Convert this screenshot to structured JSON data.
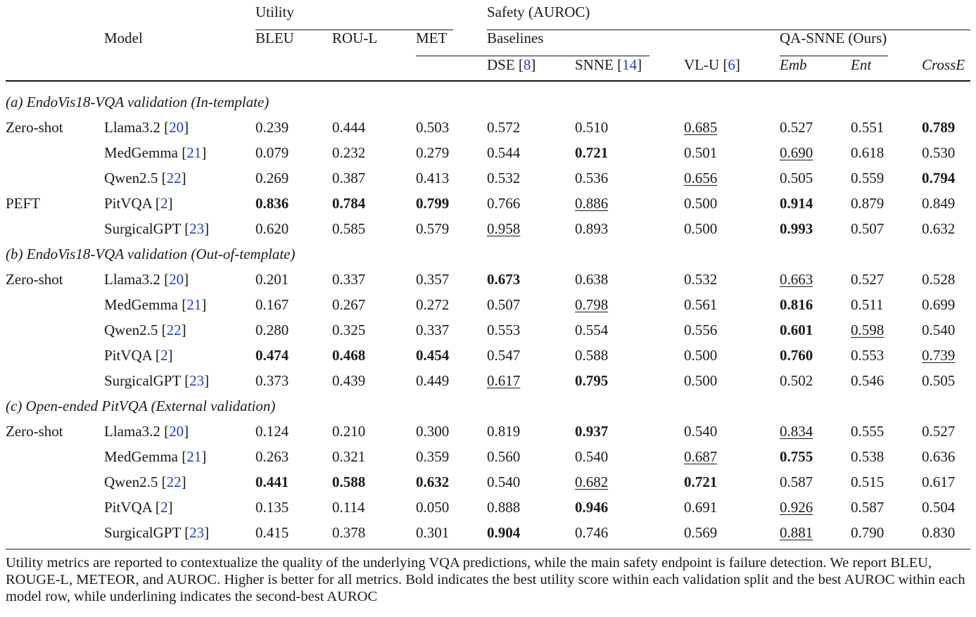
{
  "header": {
    "model": "Model",
    "utility": "Utility",
    "safety": "Safety (AUROC)",
    "baselines": "Baselines",
    "qa_snne": "QA-SNNE (Ours)",
    "bleu": "BLEU",
    "rou_l": "ROU-L",
    "met": "MET",
    "dse": "DSE [",
    "dse_ref": "8",
    "snne": "SNNE [",
    "snne_ref": "14",
    "vlu": "VL-U [",
    "vlu_ref": "6",
    "close": "]",
    "emb": "Emb",
    "ent": "Ent",
    "crosse": "CrossE"
  },
  "sections": [
    {
      "title": "(a) EndoVis18-VQA validation (In-template)",
      "rows": [
        {
          "group": "Zero-shot",
          "model": "Llama3.2",
          "ref": "20",
          "cells": [
            {
              "v": "0.239",
              "s": ""
            },
            {
              "v": "0.444",
              "s": ""
            },
            {
              "v": "0.503",
              "s": ""
            },
            {
              "v": "0.572",
              "s": ""
            },
            {
              "v": "0.510",
              "s": ""
            },
            {
              "v": "0.685",
              "s": "u"
            },
            {
              "v": "0.527",
              "s": ""
            },
            {
              "v": "0.551",
              "s": ""
            },
            {
              "v": "0.789",
              "s": "b"
            }
          ]
        },
        {
          "group": "",
          "model": "MedGemma",
          "ref": "21",
          "cells": [
            {
              "v": "0.079",
              "s": ""
            },
            {
              "v": "0.232",
              "s": ""
            },
            {
              "v": "0.279",
              "s": ""
            },
            {
              "v": "0.544",
              "s": ""
            },
            {
              "v": "0.721",
              "s": "b"
            },
            {
              "v": "0.501",
              "s": ""
            },
            {
              "v": "0.690",
              "s": "u"
            },
            {
              "v": "0.618",
              "s": ""
            },
            {
              "v": "0.530",
              "s": ""
            }
          ]
        },
        {
          "group": "",
          "model": "Qwen2.5",
          "ref": "22",
          "cells": [
            {
              "v": "0.269",
              "s": ""
            },
            {
              "v": "0.387",
              "s": ""
            },
            {
              "v": "0.413",
              "s": ""
            },
            {
              "v": "0.532",
              "s": ""
            },
            {
              "v": "0.536",
              "s": ""
            },
            {
              "v": "0.656",
              "s": "u"
            },
            {
              "v": "0.505",
              "s": ""
            },
            {
              "v": "0.559",
              "s": ""
            },
            {
              "v": "0.794",
              "s": "b"
            }
          ]
        },
        {
          "group": "PEFT",
          "model": "PitVQA",
          "ref": "2",
          "cells": [
            {
              "v": "0.836",
              "s": "b"
            },
            {
              "v": "0.784",
              "s": "b"
            },
            {
              "v": "0.799",
              "s": "b"
            },
            {
              "v": "0.766",
              "s": ""
            },
            {
              "v": "0.886",
              "s": "u"
            },
            {
              "v": "0.500",
              "s": ""
            },
            {
              "v": "0.914",
              "s": "b"
            },
            {
              "v": "0.879",
              "s": ""
            },
            {
              "v": "0.849",
              "s": ""
            }
          ]
        },
        {
          "group": "",
          "model": "SurgicalGPT",
          "ref": "23",
          "cells": [
            {
              "v": "0.620",
              "s": ""
            },
            {
              "v": "0.585",
              "s": ""
            },
            {
              "v": "0.579",
              "s": ""
            },
            {
              "v": "0.958",
              "s": "u"
            },
            {
              "v": "0.893",
              "s": ""
            },
            {
              "v": "0.500",
              "s": ""
            },
            {
              "v": "0.993",
              "s": "b"
            },
            {
              "v": "0.507",
              "s": ""
            },
            {
              "v": "0.632",
              "s": ""
            }
          ]
        }
      ]
    },
    {
      "title": "(b) EndoVis18-VQA validation (Out-of-template)",
      "rows": [
        {
          "group": "Zero-shot",
          "model": "Llama3.2",
          "ref": "20",
          "cells": [
            {
              "v": "0.201",
              "s": ""
            },
            {
              "v": "0.337",
              "s": ""
            },
            {
              "v": "0.357",
              "s": ""
            },
            {
              "v": "0.673",
              "s": "b"
            },
            {
              "v": "0.638",
              "s": ""
            },
            {
              "v": "0.532",
              "s": ""
            },
            {
              "v": "0.663",
              "s": "u"
            },
            {
              "v": "0.527",
              "s": ""
            },
            {
              "v": "0.528",
              "s": ""
            }
          ]
        },
        {
          "group": "",
          "model": "MedGemma",
          "ref": "21",
          "cells": [
            {
              "v": "0.167",
              "s": ""
            },
            {
              "v": "0.267",
              "s": ""
            },
            {
              "v": "0.272",
              "s": ""
            },
            {
              "v": "0.507",
              "s": ""
            },
            {
              "v": "0.798",
              "s": "u"
            },
            {
              "v": "0.561",
              "s": ""
            },
            {
              "v": "0.816",
              "s": "b"
            },
            {
              "v": "0.511",
              "s": ""
            },
            {
              "v": "0.699",
              "s": ""
            }
          ]
        },
        {
          "group": "",
          "model": "Qwen2.5",
          "ref": "22",
          "cells": [
            {
              "v": "0.280",
              "s": ""
            },
            {
              "v": "0.325",
              "s": ""
            },
            {
              "v": "0.337",
              "s": ""
            },
            {
              "v": "0.553",
              "s": ""
            },
            {
              "v": "0.554",
              "s": ""
            },
            {
              "v": "0.556",
              "s": ""
            },
            {
              "v": "0.601",
              "s": "b"
            },
            {
              "v": "0.598",
              "s": "u"
            },
            {
              "v": "0.540",
              "s": ""
            }
          ]
        },
        {
          "group": "",
          "model": "PitVQA",
          "ref": "2",
          "cells": [
            {
              "v": "0.474",
              "s": "b"
            },
            {
              "v": "0.468",
              "s": "b"
            },
            {
              "v": "0.454",
              "s": "b"
            },
            {
              "v": "0.547",
              "s": ""
            },
            {
              "v": "0.588",
              "s": ""
            },
            {
              "v": "0.500",
              "s": ""
            },
            {
              "v": "0.760",
              "s": "b"
            },
            {
              "v": "0.553",
              "s": ""
            },
            {
              "v": "0.739",
              "s": "u"
            }
          ]
        },
        {
          "group": "",
          "model": "SurgicalGPT",
          "ref": "23",
          "cells": [
            {
              "v": "0.373",
              "s": ""
            },
            {
              "v": "0.439",
              "s": ""
            },
            {
              "v": "0.449",
              "s": ""
            },
            {
              "v": "0.617",
              "s": "u"
            },
            {
              "v": "0.795",
              "s": "b"
            },
            {
              "v": "0.500",
              "s": ""
            },
            {
              "v": "0.502",
              "s": ""
            },
            {
              "v": "0.546",
              "s": ""
            },
            {
              "v": "0.505",
              "s": ""
            }
          ]
        }
      ]
    },
    {
      "title": "(c) Open-ended PitVQA (External validation)",
      "rows": [
        {
          "group": "Zero-shot",
          "model": "Llama3.2",
          "ref": "20",
          "cells": [
            {
              "v": "0.124",
              "s": ""
            },
            {
              "v": "0.210",
              "s": ""
            },
            {
              "v": "0.300",
              "s": ""
            },
            {
              "v": "0.819",
              "s": ""
            },
            {
              "v": "0.937",
              "s": "b"
            },
            {
              "v": "0.540",
              "s": ""
            },
            {
              "v": "0.834",
              "s": "u"
            },
            {
              "v": "0.555",
              "s": ""
            },
            {
              "v": "0.527",
              "s": ""
            }
          ]
        },
        {
          "group": "",
          "model": "MedGemma",
          "ref": "21",
          "cells": [
            {
              "v": "0.263",
              "s": ""
            },
            {
              "v": "0.321",
              "s": ""
            },
            {
              "v": "0.359",
              "s": ""
            },
            {
              "v": "0.560",
              "s": ""
            },
            {
              "v": "0.540",
              "s": ""
            },
            {
              "v": "0.687",
              "s": "u"
            },
            {
              "v": "0.755",
              "s": "b"
            },
            {
              "v": "0.538",
              "s": ""
            },
            {
              "v": "0.636",
              "s": ""
            }
          ]
        },
        {
          "group": "",
          "model": "Qwen2.5",
          "ref": "22",
          "cells": [
            {
              "v": "0.441",
              "s": "b"
            },
            {
              "v": "0.588",
              "s": "b"
            },
            {
              "v": "0.632",
              "s": "b"
            },
            {
              "v": "0.540",
              "s": ""
            },
            {
              "v": "0.682",
              "s": "u"
            },
            {
              "v": "0.721",
              "s": "b"
            },
            {
              "v": "0.587",
              "s": ""
            },
            {
              "v": "0.515",
              "s": ""
            },
            {
              "v": "0.617",
              "s": ""
            }
          ]
        },
        {
          "group": "",
          "model": "PitVQA",
          "ref": "2",
          "cells": [
            {
              "v": "0.135",
              "s": ""
            },
            {
              "v": "0.114",
              "s": ""
            },
            {
              "v": "0.050",
              "s": ""
            },
            {
              "v": "0.888",
              "s": ""
            },
            {
              "v": "0.946",
              "s": "b"
            },
            {
              "v": "0.691",
              "s": ""
            },
            {
              "v": "0.926",
              "s": "u"
            },
            {
              "v": "0.587",
              "s": ""
            },
            {
              "v": "0.504",
              "s": ""
            }
          ]
        },
        {
          "group": "",
          "model": "SurgicalGPT",
          "ref": "23",
          "cells": [
            {
              "v": "0.415",
              "s": ""
            },
            {
              "v": "0.378",
              "s": ""
            },
            {
              "v": "0.301",
              "s": ""
            },
            {
              "v": "0.904",
              "s": "b"
            },
            {
              "v": "0.746",
              "s": ""
            },
            {
              "v": "0.569",
              "s": ""
            },
            {
              "v": "0.881",
              "s": "u"
            },
            {
              "v": "0.790",
              "s": ""
            },
            {
              "v": "0.830",
              "s": ""
            }
          ]
        }
      ]
    }
  ],
  "caption": "Utility metrics are reported to contextualize the quality of the underlying VQA predictions, while the main safety endpoint is failure detection. We report BLEU, ROUGE-L, METEOR, and AUROC. Higher is better for all metrics. Bold indicates the best utility score within each validation split and the best AUROC within each model row, while underlining indicates the second-best AUROC"
}
